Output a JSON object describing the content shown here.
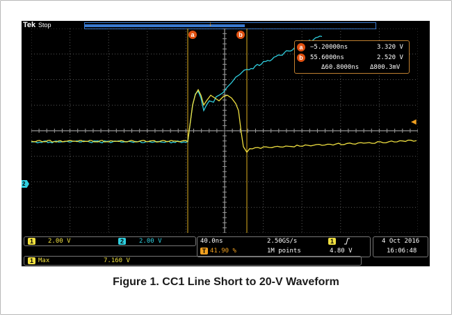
{
  "scope": {
    "brand": "Tek",
    "run_state": "Stop",
    "record_fill_fraction": 0.55,
    "colors": {
      "ch1": "#f0e040",
      "ch2": "#30d0e0",
      "cursor": "#e05010",
      "trigger": "#f0a020",
      "grid": "#5a5a5a",
      "background": "#000000"
    }
  },
  "cursors": {
    "a": {
      "label": "a",
      "time": "−5.20000ns",
      "volt": "3.320 V"
    },
    "b": {
      "label": "b",
      "time": "55.6000ns",
      "volt": "2.520 V"
    },
    "delta_time": "Δ60.8000ns",
    "delta_volt": "Δ800.3mV"
  },
  "channels": [
    {
      "num": "1",
      "scale": "2.00 V",
      "icon": "channel-1-icon"
    },
    {
      "num": "2",
      "scale": "2.00 V",
      "icon": "channel-2-icon"
    }
  ],
  "timebase": {
    "horizontal": "40.0ns",
    "sample_rate": "2.50GS/s",
    "trigger_pos_label": "T",
    "trigger_pos": "41.90 %",
    "record_length": "1M points"
  },
  "trigger": {
    "channel": "1",
    "slope_icon": "rising-edge-icon",
    "level": "4.80 V"
  },
  "datetime": {
    "date": "4 Oct  2016",
    "time": "16:06:48"
  },
  "measurement": {
    "channel": "1",
    "label": "Max",
    "value": "7.160 V"
  },
  "caption": "Figure 1. CC1 Line Short to 20-V Waveform"
}
